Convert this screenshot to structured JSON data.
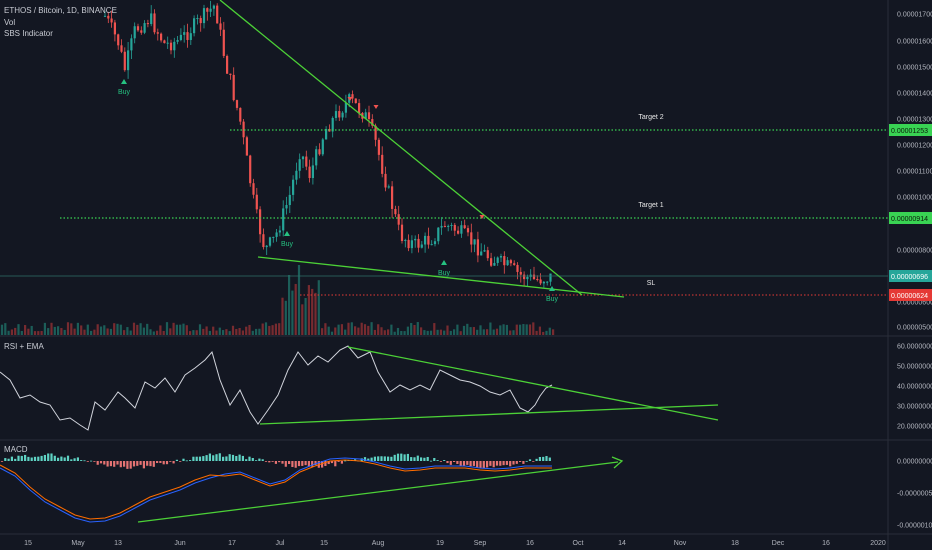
{
  "header": {
    "symbol_line": "ETHOS / Bitcoin, 1D, BINANCE",
    "indicators": [
      "Vol",
      "SBS Indicator"
    ]
  },
  "panes": {
    "rsi_title": "RSI + EMA",
    "macd_title": "MACD"
  },
  "colors": {
    "background": "#131722",
    "up": "#26a69a",
    "down": "#ef5350",
    "trendline": "#4cd137",
    "level_line": "#39d353",
    "stop_loss": "#e53935",
    "last_price": "#26a69a"
  },
  "chart_data": [
    {
      "type": "candlestick",
      "pane": "price",
      "yaxis_ticks": [
        "0.00001700",
        "0.00001600",
        "0.00001500",
        "0.00001400",
        "0.00001300",
        "0.00001200",
        "0.00001100",
        "0.00001000",
        "0.00000800",
        "0.00000600",
        "0.00000500"
      ],
      "xaxis_ticks": [
        "15",
        "May",
        "13",
        "Jun",
        "17",
        "Jul",
        "15",
        "Aug",
        "19",
        "Sep",
        "16",
        "Oct",
        "14",
        "Nov",
        "18",
        "Dec",
        "16",
        "2020"
      ],
      "levels": [
        {
          "label": "Target 2",
          "value": "0.00001253",
          "style": "dotted",
          "color": "#39d353"
        },
        {
          "label": "Target 1",
          "value": "0.00000914",
          "style": "dotted",
          "color": "#39d353"
        },
        {
          "label": "SL",
          "value": "0.00000624",
          "style": "dotted",
          "color": "#e53935"
        }
      ],
      "last_price": "0.00000696",
      "signals": [
        {
          "label": "Buy",
          "date": "May 13"
        },
        {
          "label": "Buy",
          "date": "Jun 29"
        },
        {
          "label": "Buy",
          "date": "Aug 19"
        },
        {
          "label": "Buy",
          "date": "Sep 22"
        }
      ],
      "ylim": [
        4.8e-06,
        1.75e-05
      ]
    },
    {
      "type": "line",
      "pane": "rsi",
      "title": "RSI + EMA",
      "yaxis_ticks": [
        "60.00000000",
        "50.00000000",
        "40.00000000",
        "30.00000000",
        "20.00000000"
      ],
      "ylim": [
        15,
        65
      ]
    },
    {
      "type": "histogram",
      "pane": "macd",
      "title": "MACD",
      "yaxis_ticks": [
        "0.00000000",
        "-0.00000050",
        "-0.00000100"
      ],
      "ylim": [
        -1.05e-06,
        1.5e-07
      ]
    }
  ]
}
